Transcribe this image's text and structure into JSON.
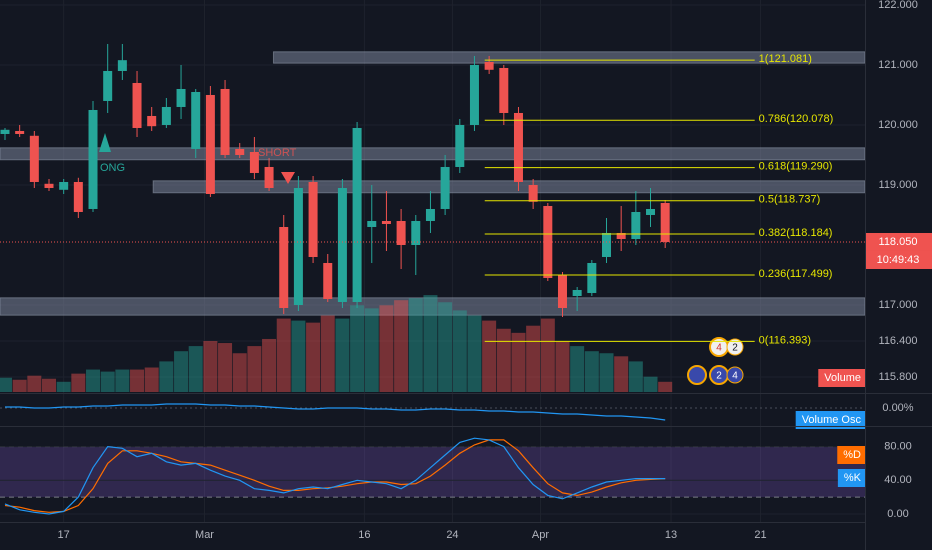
{
  "chart_data": [
    {
      "type": "candlestick",
      "up_color": "#26a69a",
      "down_color": "#ef5350",
      "open": [
        119.85,
        119.9,
        119.82,
        119.02,
        118.92,
        119.05,
        118.6,
        120.4,
        120.9,
        120.7,
        120.15,
        120.0,
        120.3,
        119.6,
        120.5,
        120.6,
        119.6,
        119.55,
        119.3,
        118.3,
        117.0,
        119.05,
        117.7,
        117.05,
        117.05,
        118.3,
        118.4,
        118.4,
        118.0,
        118.4,
        118.6,
        119.3,
        120.0,
        121.05,
        120.95,
        120.2,
        119.0,
        118.65,
        117.5,
        117.15,
        117.2,
        117.8,
        118.2,
        118.1,
        118.5,
        118.7
      ],
      "high": [
        119.95,
        120.0,
        119.9,
        119.1,
        119.1,
        119.12,
        120.4,
        121.35,
        121.35,
        120.9,
        120.3,
        120.45,
        121.0,
        120.6,
        120.65,
        120.75,
        119.7,
        119.8,
        119.45,
        118.5,
        119.15,
        119.15,
        117.85,
        119.1,
        120.05,
        119.0,
        118.9,
        118.6,
        118.5,
        118.9,
        119.5,
        120.1,
        121.15,
        121.15,
        121.0,
        120.3,
        119.1,
        118.7,
        117.55,
        117.3,
        117.75,
        118.45,
        118.65,
        118.9,
        118.95,
        118.75
      ],
      "low": [
        119.75,
        119.8,
        118.95,
        118.9,
        118.85,
        118.45,
        118.55,
        120.2,
        120.75,
        119.8,
        119.9,
        119.95,
        120.1,
        119.45,
        118.8,
        119.45,
        119.45,
        119.1,
        118.9,
        116.85,
        116.9,
        117.7,
        117.05,
        116.95,
        116.95,
        117.7,
        117.9,
        117.6,
        117.5,
        118.2,
        118.5,
        119.2,
        119.9,
        120.85,
        120.0,
        118.9,
        118.6,
        117.4,
        116.8,
        116.9,
        117.15,
        117.7,
        117.9,
        118.0,
        118.3,
        117.95
      ],
      "close": [
        119.92,
        119.85,
        119.05,
        118.95,
        119.05,
        118.55,
        120.25,
        120.9,
        121.08,
        119.95,
        119.98,
        120.3,
        120.6,
        120.55,
        118.85,
        119.5,
        119.5,
        119.2,
        118.95,
        116.95,
        118.95,
        117.8,
        117.1,
        118.95,
        119.95,
        118.4,
        118.35,
        118.0,
        118.4,
        118.6,
        119.3,
        120.0,
        121.0,
        120.92,
        120.2,
        119.05,
        118.72,
        117.45,
        116.95,
        117.25,
        117.7,
        118.2,
        118.1,
        118.55,
        118.6,
        118.05
      ],
      "xlim": [
        -0.34,
        58.62
      ],
      "xticks": [
        {
          "value": 4,
          "label": "17"
        },
        {
          "value": 13.6,
          "label": "Mar"
        },
        {
          "value": 24.5,
          "label": "16"
        },
        {
          "value": 30.5,
          "label": "24"
        },
        {
          "value": 36.5,
          "label": "Apr"
        },
        {
          "value": 45.4,
          "label": "13"
        },
        {
          "value": 51.5,
          "label": "21"
        }
      ],
      "ylim": [
        115.55,
        122.083
      ],
      "yticks": [
        {
          "value": 122,
          "label": "122.000"
        },
        {
          "value": 121,
          "label": "121.000"
        },
        {
          "value": 120,
          "label": "120.000"
        },
        {
          "value": 119,
          "label": "119.000"
        },
        {
          "value": 117,
          "label": "117.000"
        },
        {
          "value": 116.4,
          "label": "116.400"
        },
        {
          "value": 115.8,
          "label": "115.800"
        }
      ],
      "grid": true,
      "last_price": {
        "value": 118.05,
        "label": "118.050"
      },
      "countdown": "10:49:43",
      "zones": [
        {
          "low": 121.03,
          "high": 121.22,
          "x0": 18.3
        },
        {
          "low": 119.42,
          "high": 119.62
        },
        {
          "low": 118.87,
          "high": 119.07,
          "x0": 10.1
        },
        {
          "low": 116.83,
          "high": 117.12
        }
      ],
      "fib_color": "#e6e600",
      "fib_x": [
        32.7,
        51.1
      ],
      "fib_levels": [
        {
          "label": "1(121.081)",
          "value": 121.081
        },
        {
          "label": "0.786(120.078)",
          "value": 120.078
        },
        {
          "label": "0.618(119.290)",
          "value": 119.29
        },
        {
          "label": "0.5(118.737)",
          "value": 118.737
        },
        {
          "label": "0.382(118.184)",
          "value": 118.184
        },
        {
          "label": "0.236(117.499)",
          "value": 117.499
        },
        {
          "label": "0(116.393)",
          "value": 116.393
        }
      ],
      "annotations": [
        "SHORT",
        "ONG"
      ],
      "event_badges": [
        "4",
        "2",
        "2",
        "4"
      ]
    },
    {
      "type": "bar",
      "series": [
        {
          "name": "Volume",
          "color": "#ef5350",
          "values": [
            14,
            12,
            16,
            13,
            10,
            18,
            22,
            20,
            22,
            22,
            24,
            30,
            40,
            45,
            50,
            48,
            38,
            45,
            52,
            72,
            70,
            68,
            75,
            72,
            85,
            82,
            85,
            90,
            92,
            95,
            88,
            80,
            75,
            70,
            62,
            58,
            65,
            72,
            50,
            45,
            40,
            38,
            35,
            30,
            15,
            10
          ]
        }
      ],
      "ylim": [
        0,
        100
      ]
    },
    {
      "type": "line",
      "series": [
        {
          "name": "Volume Osc",
          "color": "#2196f3",
          "values": [
            1,
            1,
            0,
            0,
            1,
            1,
            2,
            2,
            3,
            3,
            3,
            4,
            4,
            4,
            3,
            3,
            2,
            2,
            1,
            0,
            -1,
            -1,
            0,
            0,
            0,
            -1,
            -1,
            -2,
            -2,
            -1,
            -1,
            -2,
            -2,
            -3,
            -3,
            -4,
            -4,
            -5,
            -6,
            -6,
            -7,
            -8,
            -8,
            -9,
            -10,
            -12
          ]
        }
      ],
      "ylim": [
        -17,
        13
      ],
      "yticks": [
        {
          "value": 0,
          "label": "0.00%"
        }
      ]
    },
    {
      "type": "line",
      "series": [
        {
          "name": "%D",
          "color": "#ff6d00",
          "values": [
            10,
            8,
            4,
            2,
            3,
            10,
            30,
            60,
            75,
            75,
            72,
            68,
            62,
            60,
            58,
            52,
            46,
            40,
            33,
            28,
            28,
            30,
            31,
            33,
            36,
            38,
            38,
            35,
            36,
            45,
            58,
            72,
            82,
            88,
            88,
            75,
            55,
            36,
            25,
            22,
            26,
            32,
            37,
            40,
            41,
            42
          ]
        },
        {
          "name": "%K",
          "color": "#2196f3",
          "values": [
            12,
            5,
            2,
            0,
            3,
            20,
            55,
            80,
            78,
            68,
            72,
            62,
            58,
            60,
            52,
            45,
            40,
            30,
            28,
            25,
            30,
            32,
            30,
            35,
            40,
            38,
            36,
            30,
            40,
            55,
            70,
            85,
            90,
            88,
            80,
            55,
            35,
            22,
            18,
            25,
            32,
            38,
            40,
            42,
            42,
            42
          ]
        }
      ],
      "ylim": [
        -9.55,
        102.1
      ],
      "yticks": [
        {
          "value": 80,
          "label": "80.00"
        },
        {
          "value": 40,
          "label": "40.00"
        },
        {
          "value": 0,
          "label": "0.00"
        }
      ],
      "band": [
        20,
        80
      ],
      "band_color": "#7e57c2"
    }
  ]
}
